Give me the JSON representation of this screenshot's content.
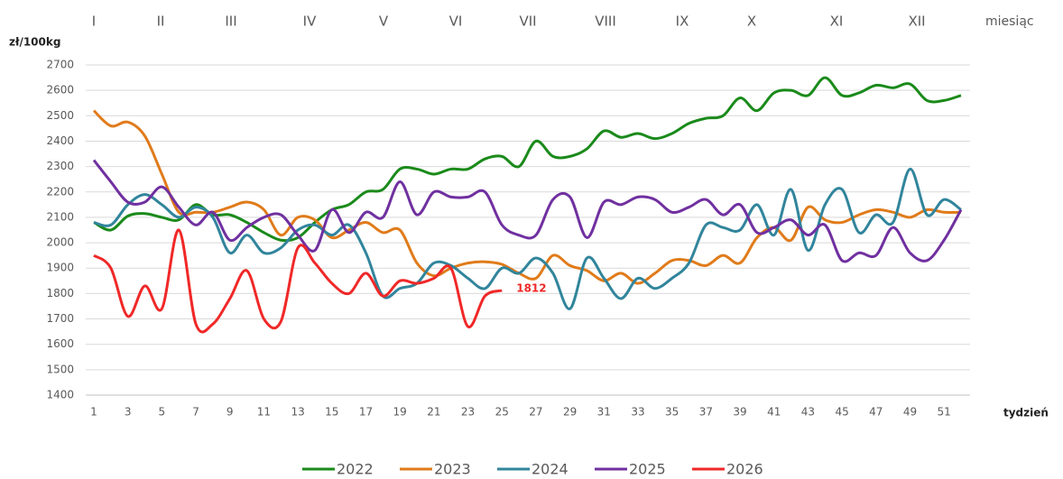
{
  "chart_data": {
    "type": "line",
    "y_label": "zł/100kg",
    "x_label": "tydzień",
    "month_axis_label": "miesiąc",
    "months": [
      "I",
      "II",
      "III",
      "IV",
      "V",
      "VI",
      "VII",
      "VIII",
      "IX",
      "X",
      "XI",
      "XII"
    ],
    "x": [
      1,
      2,
      3,
      4,
      5,
      6,
      7,
      8,
      9,
      10,
      11,
      12,
      13,
      14,
      15,
      16,
      17,
      18,
      19,
      20,
      21,
      22,
      23,
      24,
      25,
      26,
      27,
      28,
      29,
      30,
      31,
      32,
      33,
      34,
      35,
      36,
      37,
      38,
      39,
      40,
      41,
      42,
      43,
      44,
      45,
      46,
      47,
      48,
      49,
      50,
      51,
      52
    ],
    "xlim": [
      1,
      52
    ],
    "xticks": [
      1,
      3,
      5,
      7,
      9,
      11,
      13,
      15,
      17,
      19,
      21,
      23,
      25,
      27,
      29,
      31,
      33,
      35,
      37,
      39,
      41,
      43,
      45,
      47,
      49,
      51
    ],
    "ylim": [
      1400,
      2700
    ],
    "yticks": [
      1400,
      1500,
      1600,
      1700,
      1800,
      1900,
      2000,
      2100,
      2200,
      2300,
      2400,
      2500,
      2600,
      2700
    ],
    "grid": true,
    "legend": "bottom",
    "series": [
      {
        "name": "2022",
        "color": "#1a8a1a",
        "values": [
          2080,
          2050,
          2105,
          2115,
          2100,
          2090,
          2150,
          2110,
          2110,
          2080,
          2040,
          2010,
          2020,
          2080,
          2130,
          2150,
          2200,
          2210,
          2290,
          2290,
          2270,
          2290,
          2290,
          2330,
          2340,
          2300,
          2400,
          2340,
          2340,
          2370,
          2440,
          2415,
          2430,
          2410,
          2430,
          2470,
          2490,
          2500,
          2570,
          2520,
          2590,
          2600,
          2580,
          2650,
          2580,
          2590,
          2620,
          2610,
          2625,
          2560,
          2560,
          2580
        ]
      },
      {
        "name": "2023",
        "color": "#e07b1a",
        "values": [
          2520,
          2460,
          2475,
          2420,
          2270,
          2120,
          2120,
          2120,
          2140,
          2160,
          2130,
          2030,
          2100,
          2090,
          2020,
          2050,
          2080,
          2040,
          2050,
          1920,
          1870,
          1900,
          1920,
          1925,
          1915,
          1880,
          1860,
          1950,
          1910,
          1890,
          1850,
          1880,
          1840,
          1880,
          1930,
          1930,
          1910,
          1950,
          1920,
          2020,
          2060,
          2010,
          2140,
          2090,
          2080,
          2110,
          2130,
          2120,
          2100,
          2130,
          2120,
          2120
        ]
      },
      {
        "name": "2024",
        "color": "#31859c",
        "values": [
          2080,
          2070,
          2150,
          2190,
          2150,
          2100,
          2140,
          2100,
          1960,
          2030,
          1960,
          1980,
          2050,
          2070,
          2030,
          2070,
          1960,
          1790,
          1820,
          1840,
          1920,
          1910,
          1860,
          1820,
          1900,
          1880,
          1940,
          1880,
          1740,
          1940,
          1860,
          1780,
          1860,
          1820,
          1860,
          1920,
          2070,
          2060,
          2050,
          2150,
          2030,
          2210,
          1970,
          2150,
          2210,
          2040,
          2110,
          2080,
          2290,
          2110,
          2170,
          2130
        ]
      },
      {
        "name": "2025",
        "color": "#7030a0",
        "values": [
          2325,
          2240,
          2160,
          2160,
          2220,
          2140,
          2070,
          2120,
          2010,
          2060,
          2100,
          2110,
          2030,
          1970,
          2130,
          2040,
          2120,
          2100,
          2240,
          2110,
          2200,
          2180,
          2180,
          2200,
          2070,
          2030,
          2030,
          2170,
          2180,
          2020,
          2160,
          2150,
          2180,
          2170,
          2120,
          2140,
          2170,
          2110,
          2150,
          2040,
          2060,
          2090,
          2030,
          2070,
          1930,
          1960,
          1950,
          2060,
          1960,
          1930,
          2010,
          2130
        ]
      },
      {
        "name": "2026",
        "color": "#f02828",
        "data_labels": "last",
        "values": [
          1950,
          1900,
          1710,
          1830,
          1740,
          2050,
          1680,
          1680,
          1780,
          1890,
          1700,
          1690,
          1980,
          1920,
          1840,
          1800,
          1880,
          1790,
          1850,
          1840,
          1860,
          1900,
          1670,
          1790,
          1812,
          null,
          null,
          null,
          null,
          null,
          null,
          null,
          null,
          null,
          null,
          null,
          null,
          null,
          null,
          null,
          null,
          null,
          null,
          null,
          null,
          null,
          null,
          null,
          null,
          null,
          null,
          null
        ]
      }
    ]
  }
}
